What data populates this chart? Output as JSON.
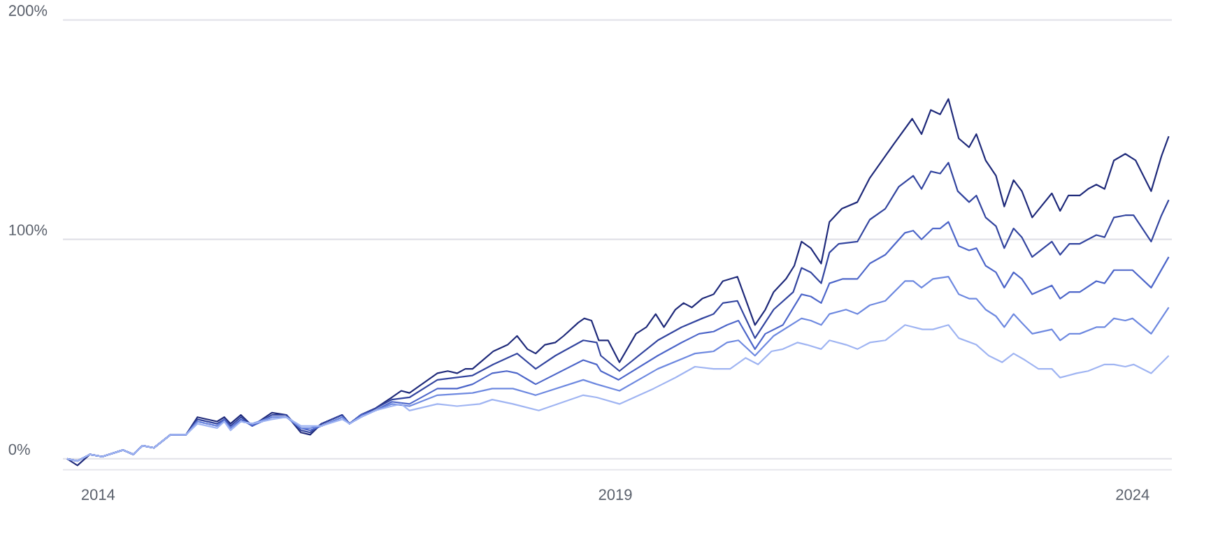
{
  "chart_data": {
    "type": "line",
    "xlim": [
      2013.66,
      2024.38
    ],
    "ylim": [
      -5,
      200
    ],
    "xticks": [
      2014,
      2019,
      2024
    ],
    "yticks": [
      {
        "value": 0,
        "label": "0%"
      },
      {
        "value": 100,
        "label": "100%"
      },
      {
        "value": 200,
        "label": "200%"
      }
    ],
    "grid": "y",
    "series": [
      {
        "color": "#1f2a7a",
        "x": [
          2013.7,
          2013.8,
          2013.92,
          2014.04,
          2014.24,
          2014.34,
          2014.43,
          2014.54,
          2014.7,
          2014.85,
          2014.96,
          2015.15,
          2015.22,
          2015.28,
          2015.38,
          2015.49,
          2015.68,
          2015.82,
          2015.96,
          2016.05,
          2016.16,
          2016.36,
          2016.43,
          2016.54,
          2016.68,
          2016.84,
          2016.93,
          2017.01,
          2017.28,
          2017.38,
          2017.47,
          2017.55,
          2017.62,
          2017.82,
          2017.96,
          2018.05,
          2018.15,
          2018.23,
          2018.32,
          2018.42,
          2018.5,
          2018.64,
          2018.7,
          2018.77,
          2018.84,
          2018.93,
          2019.04,
          2019.2,
          2019.3,
          2019.39,
          2019.47,
          2019.58,
          2019.66,
          2019.74,
          2019.84,
          2019.95,
          2020.04,
          2020.18,
          2020.35,
          2020.45,
          2020.53,
          2020.65,
          2020.73,
          2020.8,
          2020.89,
          2020.99,
          2021.07,
          2021.19,
          2021.34,
          2021.46,
          2021.61,
          2021.7,
          2021.87,
          2021.96,
          2022.05,
          2022.14,
          2022.22,
          2022.32,
          2022.42,
          2022.49,
          2022.58,
          2022.68,
          2022.76,
          2022.85,
          2022.93,
          2023.03,
          2023.22,
          2023.3,
          2023.38,
          2023.49,
          2023.57,
          2023.65,
          2023.73,
          2023.82,
          2023.93,
          2024.03,
          2024.18,
          2024.28,
          2024.35
        ],
        "values": [
          0,
          -3,
          2,
          1,
          4,
          2,
          6,
          5,
          11,
          11,
          19,
          17,
          19,
          16,
          20,
          15,
          21,
          20,
          12,
          11,
          16,
          20,
          16,
          20,
          23,
          28,
          31,
          30,
          39,
          40,
          39,
          41,
          41,
          49,
          52,
          56,
          50,
          48,
          52,
          53,
          56,
          62,
          64,
          63,
          54,
          54,
          44,
          57,
          60,
          66,
          60,
          68,
          71,
          69,
          73,
          75,
          81,
          83,
          61,
          68,
          76,
          82,
          88,
          99,
          96,
          89,
          108,
          114,
          117,
          128,
          138,
          144,
          155,
          148,
          159,
          157,
          164,
          146,
          142,
          148,
          136,
          129,
          115,
          127,
          122,
          110,
          121,
          113,
          120,
          120,
          123,
          125,
          123,
          136,
          139,
          136,
          122,
          138,
          147
        ]
      },
      {
        "color": "#33459f",
        "x": [
          2013.7,
          2013.8,
          2013.92,
          2014.04,
          2014.24,
          2014.34,
          2014.43,
          2014.54,
          2014.7,
          2014.85,
          2014.96,
          2015.15,
          2015.22,
          2015.28,
          2015.38,
          2015.49,
          2015.68,
          2015.82,
          2015.96,
          2016.05,
          2016.16,
          2016.36,
          2016.43,
          2016.54,
          2016.68,
          2016.84,
          2017.01,
          2017.28,
          2017.62,
          2017.82,
          2018.05,
          2018.23,
          2018.42,
          2018.69,
          2018.82,
          2018.86,
          2019.04,
          2019.41,
          2019.64,
          2019.84,
          2019.95,
          2020.04,
          2020.18,
          2020.35,
          2020.53,
          2020.72,
          2020.8,
          2020.89,
          2020.99,
          2021.07,
          2021.16,
          2021.34,
          2021.46,
          2021.61,
          2021.74,
          2021.88,
          2021.96,
          2022.05,
          2022.14,
          2022.22,
          2022.31,
          2022.42,
          2022.49,
          2022.58,
          2022.68,
          2022.76,
          2022.85,
          2022.93,
          2023.03,
          2023.22,
          2023.3,
          2023.39,
          2023.49,
          2023.65,
          2023.73,
          2023.82,
          2023.93,
          2024.01,
          2024.18,
          2024.28,
          2024.35
        ],
        "values": [
          0,
          -1,
          2,
          1,
          4,
          2,
          6,
          5,
          11,
          11,
          18,
          16,
          18,
          15,
          19,
          15,
          20,
          20,
          13,
          12,
          16,
          20,
          16,
          20,
          23,
          27,
          28,
          36,
          38,
          43,
          48,
          41,
          47,
          54,
          53,
          47,
          40,
          54,
          60,
          64,
          66,
          71,
          72,
          55,
          68,
          76,
          87,
          85,
          80,
          94,
          98,
          99,
          109,
          114,
          124,
          129,
          123,
          131,
          130,
          135,
          122,
          117,
          120,
          110,
          106,
          96,
          105,
          101,
          92,
          99,
          93,
          98,
          98,
          102,
          101,
          110,
          111,
          111,
          99,
          111,
          118
        ]
      },
      {
        "color": "#4d66c9",
        "x": [
          2013.7,
          2013.8,
          2013.92,
          2014.04,
          2014.24,
          2014.34,
          2014.43,
          2014.54,
          2014.7,
          2014.85,
          2014.96,
          2015.15,
          2015.22,
          2015.28,
          2015.38,
          2015.49,
          2015.68,
          2015.82,
          2015.96,
          2016.05,
          2016.16,
          2016.36,
          2016.43,
          2016.54,
          2016.68,
          2016.84,
          2017.01,
          2017.28,
          2017.47,
          2017.62,
          2017.81,
          2017.95,
          2018.05,
          2018.23,
          2018.69,
          2018.82,
          2018.86,
          2019.03,
          2019.41,
          2019.64,
          2019.81,
          2019.95,
          2020.08,
          2020.19,
          2020.35,
          2020.45,
          2020.62,
          2020.8,
          2020.89,
          2020.99,
          2021.07,
          2021.2,
          2021.34,
          2021.46,
          2021.61,
          2021.8,
          2021.88,
          2021.96,
          2022.07,
          2022.14,
          2022.22,
          2022.32,
          2022.42,
          2022.49,
          2022.58,
          2022.68,
          2022.76,
          2022.85,
          2022.93,
          2023.03,
          2023.22,
          2023.3,
          2023.39,
          2023.49,
          2023.65,
          2023.73,
          2023.82,
          2024.0,
          2024.18,
          2024.35
        ],
        "values": [
          0,
          -1,
          2,
          1,
          4,
          2,
          6,
          5,
          11,
          11,
          17,
          15,
          18,
          14,
          18,
          15,
          19,
          19,
          14,
          13,
          15,
          19,
          16,
          20,
          22,
          26,
          25,
          32,
          32,
          34,
          39,
          40,
          39,
          34,
          45,
          43,
          40,
          36,
          47,
          53,
          57,
          58,
          61,
          63,
          50,
          57,
          61,
          75,
          74,
          71,
          80,
          82,
          82,
          89,
          93,
          103,
          104,
          100,
          105,
          105,
          108,
          97,
          95,
          96,
          88,
          85,
          78,
          85,
          82,
          75,
          79,
          73,
          76,
          76,
          81,
          80,
          86,
          86,
          78,
          92
        ]
      },
      {
        "color": "#6e89e0",
        "x": [
          2013.7,
          2013.8,
          2013.92,
          2014.04,
          2014.24,
          2014.34,
          2014.43,
          2014.54,
          2014.7,
          2014.85,
          2014.96,
          2015.15,
          2015.22,
          2015.28,
          2015.38,
          2015.49,
          2015.68,
          2015.82,
          2015.96,
          2016.05,
          2016.16,
          2016.36,
          2016.43,
          2016.54,
          2016.68,
          2016.84,
          2017.01,
          2017.28,
          2017.62,
          2017.81,
          2018.01,
          2018.23,
          2018.69,
          2018.82,
          2019.04,
          2019.41,
          2019.77,
          2019.95,
          2020.08,
          2020.19,
          2020.35,
          2020.53,
          2020.8,
          2020.89,
          2020.99,
          2021.07,
          2021.23,
          2021.34,
          2021.46,
          2021.61,
          2021.8,
          2021.88,
          2021.96,
          2022.07,
          2022.22,
          2022.32,
          2022.42,
          2022.49,
          2022.58,
          2022.68,
          2022.76,
          2022.85,
          2022.93,
          2023.03,
          2023.22,
          2023.3,
          2023.39,
          2023.49,
          2023.65,
          2023.73,
          2023.82,
          2023.93,
          2024.0,
          2024.18,
          2024.35
        ],
        "values": [
          0,
          -1,
          2,
          1,
          4,
          2,
          6,
          5,
          11,
          11,
          17,
          15,
          17,
          14,
          17,
          16,
          19,
          19,
          14,
          14,
          15,
          19,
          16,
          19,
          22,
          25,
          24,
          29,
          30,
          32,
          32,
          29,
          36,
          34,
          31,
          41,
          48,
          49,
          53,
          54,
          47,
          56,
          64,
          63,
          61,
          66,
          68,
          66,
          70,
          72,
          81,
          81,
          78,
          82,
          83,
          75,
          73,
          73,
          68,
          65,
          60,
          66,
          62,
          57,
          59,
          54,
          57,
          57,
          60,
          60,
          64,
          63,
          64,
          57,
          69
        ]
      },
      {
        "color": "#9fb4f2",
        "x": [
          2013.7,
          2013.8,
          2013.92,
          2014.04,
          2014.24,
          2014.34,
          2014.43,
          2014.54,
          2014.7,
          2014.85,
          2014.96,
          2015.15,
          2015.22,
          2015.28,
          2015.38,
          2015.49,
          2015.68,
          2015.82,
          2015.96,
          2016.05,
          2016.16,
          2016.36,
          2016.43,
          2016.54,
          2016.68,
          2016.84,
          2016.93,
          2017.01,
          2017.28,
          2017.47,
          2017.69,
          2017.81,
          2018.01,
          2018.26,
          2018.69,
          2018.82,
          2019.04,
          2019.37,
          2019.58,
          2019.77,
          2019.95,
          2020.04,
          2020.11,
          2020.26,
          2020.38,
          2020.51,
          2020.62,
          2020.76,
          2020.85,
          2020.99,
          2021.07,
          2021.23,
          2021.34,
          2021.46,
          2021.61,
          2021.8,
          2021.97,
          2022.07,
          2022.22,
          2022.32,
          2022.49,
          2022.61,
          2022.74,
          2022.85,
          2022.96,
          2023.09,
          2023.22,
          2023.3,
          2023.46,
          2023.57,
          2023.73,
          2023.82,
          2023.93,
          2024.01,
          2024.18,
          2024.35
        ],
        "values": [
          0,
          -1,
          2,
          1,
          4,
          2,
          6,
          5,
          11,
          11,
          16,
          14,
          17,
          13,
          17,
          16,
          18,
          19,
          15,
          15,
          15,
          18,
          16,
          19,
          22,
          24,
          25,
          22,
          25,
          24,
          25,
          27,
          25,
          22,
          29,
          28,
          25,
          32,
          37,
          42,
          41,
          41,
          41,
          46,
          43,
          49,
          50,
          53,
          52,
          50,
          54,
          52,
          50,
          53,
          54,
          61,
          59,
          59,
          61,
          55,
          52,
          47,
          44,
          48,
          45,
          41,
          41,
          37,
          39,
          40,
          43,
          43,
          42,
          43,
          39,
          47
        ]
      }
    ]
  }
}
